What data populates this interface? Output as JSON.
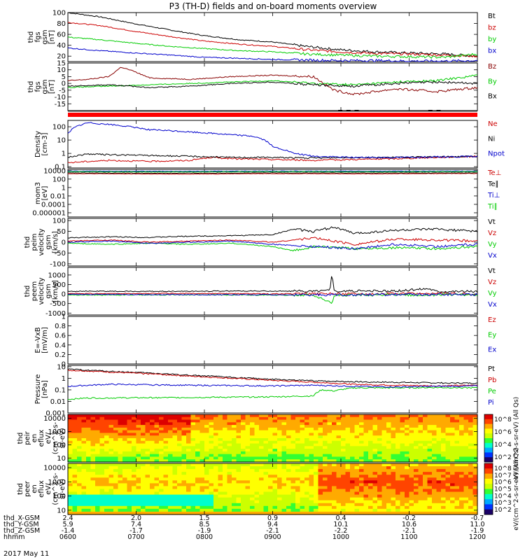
{
  "title": "P3 (TH-D) fields and on-board moments overview",
  "date_label": "2017 May 11",
  "ephemeris": [
    {
      "label": "thd_X-GSM",
      "values": [
        "2.4",
        "2.0",
        "1.5",
        "0.9",
        "0.4",
        "-0.2",
        "-0.7"
      ]
    },
    {
      "label": "thd_Y-GSM",
      "values": [
        "5.9",
        "7.4",
        "8.5",
        "9.4",
        "10.1",
        "10.6",
        "11.0"
      ]
    },
    {
      "label": "thd_Z-GSM",
      "values": [
        "-1.4",
        "-1.7",
        "-1.9",
        "-2.1",
        "-2.2",
        "-2.1",
        "-1.9"
      ]
    },
    {
      "label": "hhmm",
      "values": [
        "0600",
        "0700",
        "0800",
        "0900",
        "1000",
        "1100",
        "1200"
      ]
    }
  ],
  "chart_data": [
    {
      "type": "line",
      "id": "fgs_mag",
      "ylabel_lines": [
        "thd",
        "fgs",
        "gsm",
        "[nT]"
      ],
      "ylim": [
        10,
        100
      ],
      "yticks": [
        20,
        40,
        60,
        80,
        100
      ],
      "legend": [
        "Bt",
        "bz",
        "by",
        "bx"
      ],
      "series": [
        {
          "name": "Bt",
          "color": "#000000",
          "x": [
            0,
            0.08,
            0.16,
            0.25,
            0.33,
            0.42,
            0.5,
            0.58,
            0.66,
            0.75,
            0.83,
            0.92,
            1
          ],
          "y": [
            100,
            92,
            80,
            68,
            58,
            50,
            46,
            38,
            32,
            28,
            26,
            24,
            20
          ]
        },
        {
          "name": "bz",
          "color": "#cc0000",
          "x": [
            0,
            0.08,
            0.16,
            0.25,
            0.33,
            0.42,
            0.5,
            0.58,
            0.66,
            0.75,
            0.83,
            0.92,
            1
          ],
          "y": [
            82,
            76,
            66,
            56,
            48,
            42,
            38,
            32,
            28,
            25,
            24,
            22,
            20
          ]
        },
        {
          "name": "by",
          "color": "#00cc00",
          "x": [
            0,
            0.08,
            0.16,
            0.25,
            0.33,
            0.42,
            0.5,
            0.58,
            0.66,
            0.75,
            0.83,
            0.92,
            1
          ],
          "y": [
            55,
            50,
            44,
            38,
            34,
            30,
            28,
            24,
            22,
            20,
            19,
            18,
            24
          ]
        },
        {
          "name": "bx",
          "color": "#0000cc",
          "x": [
            0,
            0.08,
            0.16,
            0.25,
            0.33,
            0.42,
            0.5,
            0.58,
            0.66,
            0.75,
            0.83,
            0.92,
            1
          ],
          "y": [
            35,
            30,
            26,
            22,
            18,
            16,
            14,
            13,
            12,
            12,
            11,
            11,
            12
          ]
        }
      ]
    },
    {
      "type": "line",
      "id": "fgs_dsl",
      "ylabel_lines": [
        "thd",
        "fgs",
        "gsm",
        "[nT]"
      ],
      "ylim": [
        -20,
        15
      ],
      "yticks": [
        -15,
        -10,
        -5,
        0,
        5,
        10,
        15
      ],
      "legend": [
        "Bz",
        "By",
        "Bx"
      ],
      "series": [
        {
          "name": "Bz",
          "color": "#880000",
          "x": [
            0,
            0.05,
            0.1,
            0.13,
            0.16,
            0.2,
            0.3,
            0.4,
            0.5,
            0.6,
            0.65,
            0.7,
            0.8,
            0.9,
            1
          ],
          "y": [
            2,
            3,
            5,
            12,
            9,
            4,
            3,
            5,
            6,
            5,
            -5,
            -8,
            -4,
            -6,
            -3
          ]
        },
        {
          "name": "By",
          "color": "#00cc00",
          "x": [
            0,
            0.1,
            0.2,
            0.3,
            0.4,
            0.5,
            0.6,
            0.7,
            0.8,
            0.9,
            1
          ],
          "y": [
            -3,
            -2,
            -1,
            0,
            1,
            2,
            0,
            -1,
            1,
            2,
            6
          ]
        },
        {
          "name": "Bx",
          "color": "#000000",
          "x": [
            0,
            0.1,
            0.2,
            0.3,
            0.4,
            0.5,
            0.6,
            0.7,
            0.8,
            0.9,
            1
          ],
          "y": [
            -2,
            -1,
            -3,
            -2,
            0,
            1,
            -1,
            -2,
            0,
            1,
            0
          ]
        }
      ]
    },
    {
      "type": "line",
      "id": "density",
      "ylabel_lines": [
        "Density",
        "[cm-3]"
      ],
      "yscale": "log",
      "ylim": [
        0.08,
        300
      ],
      "yticks": [
        0.1,
        1,
        10,
        100
      ],
      "legend": [
        "Ne",
        "Ni",
        "Npot"
      ],
      "series": [
        {
          "name": "Ne",
          "color": "#cc0000",
          "x": [
            0,
            0.1,
            0.2,
            0.3,
            0.35,
            0.4,
            0.5,
            0.6,
            0.7,
            0.8,
            0.9,
            1
          ],
          "y": [
            0.2,
            0.3,
            0.25,
            0.3,
            0.5,
            0.4,
            0.35,
            0.3,
            0.35,
            0.4,
            0.5,
            0.6
          ]
        },
        {
          "name": "Ni",
          "color": "#000000",
          "x": [
            0,
            0.05,
            0.1,
            0.2,
            0.3,
            0.4,
            0.5,
            0.6,
            0.7,
            0.8,
            0.9,
            1
          ],
          "y": [
            0.5,
            0.9,
            0.8,
            0.7,
            0.6,
            0.5,
            0.5,
            0.45,
            0.5,
            0.5,
            0.55,
            0.6
          ]
        },
        {
          "name": "Npot",
          "color": "#0000cc",
          "x": [
            0,
            0.05,
            0.1,
            0.15,
            0.2,
            0.3,
            0.4,
            0.45,
            0.5,
            0.55,
            0.6,
            0.7,
            0.8,
            0.9,
            1
          ],
          "y": [
            30,
            200,
            150,
            100,
            60,
            40,
            25,
            20,
            3,
            1,
            0.6,
            0.5,
            0.5,
            0.55,
            0.6
          ]
        }
      ]
    },
    {
      "type": "line",
      "id": "moments_temp",
      "ylabel_lines": [
        "mom3",
        "[eV]"
      ],
      "yscale": "log",
      "ylim": [
        1e-07,
        20000.0
      ],
      "yticks": [
        1e-06,
        0.0001,
        0.01,
        1,
        100,
        10000
      ],
      "legend": [
        "Te⊥",
        "Te∥",
        "Ti⊥",
        "Ti∥"
      ],
      "series": [
        {
          "name": "Te⊥",
          "color": "#cc0000",
          "x": [
            0,
            0.25,
            0.5,
            0.75,
            1
          ],
          "y": [
            2000,
            1500,
            2000,
            1800,
            2200
          ]
        },
        {
          "name": "Te∥",
          "color": "#000000",
          "x": [
            0,
            0.25,
            0.5,
            0.75,
            1
          ],
          "y": [
            3000,
            2500,
            3000,
            2800,
            3000
          ]
        },
        {
          "name": "Ti⊥",
          "color": "#0000cc",
          "x": [
            0,
            0.25,
            0.5,
            0.75,
            1
          ],
          "y": [
            8000,
            7000,
            8000,
            7500,
            8000
          ]
        },
        {
          "name": "Ti∥",
          "color": "#00cc00",
          "x": [
            0,
            0.25,
            0.5,
            0.75,
            1
          ],
          "y": [
            6000,
            5000,
            6000,
            5500,
            6000
          ]
        }
      ]
    },
    {
      "type": "line",
      "id": "peim_velocity",
      "ylabel_lines": [
        "thd",
        "peim",
        "velocity",
        "gsm",
        "[km/s]"
      ],
      "ylim": [
        -110,
        110
      ],
      "yticks": [
        -100,
        -50,
        0,
        50,
        100
      ],
      "legend": [
        "Vt",
        "Vz",
        "Vy",
        "Vx"
      ],
      "series": [
        {
          "name": "Vt",
          "color": "#000000",
          "x": [
            0,
            0.1,
            0.2,
            0.3,
            0.4,
            0.5,
            0.55,
            0.6,
            0.65,
            0.7,
            0.8,
            0.9,
            1
          ],
          "y": [
            20,
            25,
            22,
            28,
            30,
            35,
            60,
            50,
            70,
            40,
            55,
            60,
            50
          ]
        },
        {
          "name": "Vz",
          "color": "#cc0000",
          "x": [
            0,
            0.1,
            0.2,
            0.3,
            0.4,
            0.5,
            0.6,
            0.7,
            0.8,
            0.9,
            1
          ],
          "y": [
            5,
            10,
            0,
            5,
            10,
            0,
            20,
            -10,
            15,
            10,
            5
          ]
        },
        {
          "name": "Vy",
          "color": "#00cc00",
          "x": [
            0,
            0.1,
            0.2,
            0.3,
            0.4,
            0.5,
            0.55,
            0.6,
            0.7,
            0.8,
            0.9,
            1
          ],
          "y": [
            -5,
            -10,
            -5,
            -10,
            -5,
            -20,
            -40,
            -20,
            -30,
            -25,
            -30,
            -20
          ]
        },
        {
          "name": "Vx",
          "color": "#0000cc",
          "x": [
            0,
            0.1,
            0.2,
            0.3,
            0.4,
            0.5,
            0.6,
            0.7,
            0.8,
            0.9,
            1
          ],
          "y": [
            0,
            5,
            -5,
            0,
            5,
            -10,
            -20,
            -30,
            -10,
            -20,
            -10
          ]
        }
      ]
    },
    {
      "type": "line",
      "id": "peem_velocity",
      "ylabel_lines": [
        "thd",
        "peem",
        "velocity",
        "gsm",
        "[km/s]"
      ],
      "ylim": [
        -1100,
        1400
      ],
      "yticks": [
        -1000,
        -500,
        0,
        500,
        1000
      ],
      "legend": [
        "Vt",
        "Vz",
        "Vy",
        "Vx"
      ],
      "series": [
        {
          "name": "Vt",
          "color": "#000000",
          "x": [
            0,
            0.2,
            0.4,
            0.6,
            0.64,
            0.645,
            0.65,
            0.7,
            0.8,
            0.88,
            0.9,
            1
          ],
          "y": [
            150,
            140,
            160,
            150,
            200,
            1200,
            150,
            160,
            150,
            300,
            150,
            140
          ]
        },
        {
          "name": "Vz",
          "color": "#cc0000",
          "x": [
            0,
            0.25,
            0.5,
            0.75,
            1
          ],
          "y": [
            20,
            30,
            10,
            20,
            20
          ]
        },
        {
          "name": "Vy",
          "color": "#00cc00",
          "x": [
            0,
            0.3,
            0.6,
            0.645,
            0.65,
            0.8,
            1
          ],
          "y": [
            -50,
            -40,
            -60,
            -500,
            -60,
            -50,
            -40
          ]
        },
        {
          "name": "Vx",
          "color": "#0000cc",
          "x": [
            0,
            0.3,
            0.6,
            0.8,
            1
          ],
          "y": [
            -20,
            -30,
            -40,
            -30,
            -20
          ]
        }
      ]
    },
    {
      "type": "line",
      "id": "efield",
      "ylabel_lines": [
        "E=-VxB",
        "[mV/m]"
      ],
      "ylim": [
        0,
        1.0
      ],
      "yticks": [
        0.0,
        0.2,
        0.4,
        0.6,
        0.8,
        1.0
      ],
      "legend": [
        "Ez",
        "Ey",
        "Ex"
      ],
      "series": []
    },
    {
      "type": "line",
      "id": "pressure",
      "ylabel_lines": [
        "Pressure",
        "[nPa]"
      ],
      "yscale": "log",
      "ylim": [
        0.001,
        13
      ],
      "yticks": [
        0.001,
        0.01,
        0.1,
        1.0,
        10.0
      ],
      "legend": [
        "Pt",
        "Pb",
        "Pe",
        "Pi"
      ],
      "series": [
        {
          "name": "Pt",
          "color": "#000000",
          "x": [
            0,
            0.1,
            0.2,
            0.3,
            0.4,
            0.5,
            0.6,
            0.7,
            0.8,
            0.9,
            1
          ],
          "y": [
            6,
            4,
            2.8,
            1.8,
            1.2,
            0.8,
            0.6,
            0.5,
            0.45,
            0.4,
            0.38
          ]
        },
        {
          "name": "Pb",
          "color": "#cc0000",
          "x": [
            0,
            0.1,
            0.2,
            0.3,
            0.4,
            0.5,
            0.6,
            0.7,
            0.8,
            0.9,
            1
          ],
          "y": [
            5,
            3.5,
            2.4,
            1.5,
            1.0,
            0.65,
            0.45,
            0.3,
            0.25,
            0.22,
            0.25
          ]
        },
        {
          "name": "Pe",
          "color": "#00cc00",
          "x": [
            0,
            0.05,
            0.1,
            0.3,
            0.5,
            0.6,
            0.62,
            0.65,
            0.7,
            0.8,
            0.9,
            1
          ],
          "y": [
            0.015,
            0.02,
            0.02,
            0.022,
            0.025,
            0.03,
            0.1,
            0.08,
            0.15,
            0.15,
            0.16,
            0.15
          ]
        },
        {
          "name": "Pi",
          "color": "#0000cc",
          "x": [
            0,
            0.1,
            0.3,
            0.5,
            0.6,
            0.7,
            0.8,
            0.9,
            1
          ],
          "y": [
            0.2,
            0.3,
            0.25,
            0.22,
            0.25,
            0.2,
            0.18,
            0.2,
            0.22
          ]
        }
      ]
    },
    {
      "type": "heatmap",
      "id": "peir_spec",
      "ylabel_lines": [
        "thd",
        "peir",
        "en",
        "eflux",
        "eV/",
        "(cm^2-s-",
        "sr-eV)"
      ],
      "yscale": "log",
      "ylim": [
        5,
        20000
      ],
      "yticks": [
        10,
        100,
        1000,
        10000
      ],
      "colorbar_label": "eV/(cm^2-s-sr-eV) (All Qs)",
      "colorbar_ticks": [
        "10^8",
        "10^6",
        "10^4",
        "10^2"
      ]
    },
    {
      "type": "heatmap",
      "id": "peer_spec",
      "ylabel_lines": [
        "thd",
        "peer",
        "en",
        "eflux",
        "eV/",
        "(cm^2-s-",
        "sr-eV)"
      ],
      "yscale": "log",
      "ylim": [
        5,
        20000
      ],
      "yticks": [
        10,
        100,
        1000,
        10000
      ],
      "colorbar_label": "eV/(cm^2-s-sr-eV) (All Qs)",
      "colorbar_ticks": [
        "10^8",
        "10^7",
        "10^6",
        "10^5",
        "10^4",
        "10^3",
        "10^2"
      ]
    }
  ],
  "colors": {
    "black": "#000000",
    "red": "#cc0000",
    "green": "#00cc00",
    "blue": "#0000cc",
    "darkred": "#880000"
  }
}
